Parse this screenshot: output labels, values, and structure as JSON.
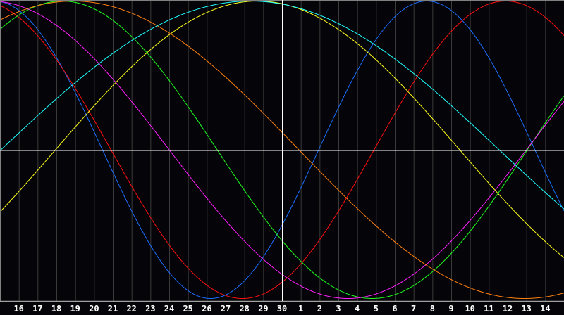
{
  "chart_data": {
    "type": "line",
    "title": "",
    "xlabel": "",
    "ylabel": "",
    "categories": [
      "16",
      "17",
      "18",
      "19",
      "20",
      "21",
      "22",
      "23",
      "24",
      "25",
      "26",
      "27",
      "28",
      "29",
      "30",
      "1",
      "2",
      "3",
      "4",
      "5",
      "6",
      "7",
      "8",
      "9",
      "10",
      "11",
      "12",
      "13",
      "14"
    ],
    "ylim": [
      -1,
      1
    ],
    "grid": true,
    "marker_category": "30",
    "series": [
      {
        "period_days": 23,
        "peak_index": 21.7,
        "color": "#1a6fff"
      },
      {
        "period_days": 28,
        "peak_index": 25.9,
        "color": "#ff1010"
      },
      {
        "period_days": 33,
        "peak_index": 2.3,
        "color": "#20ff20"
      },
      {
        "period_days": 38,
        "peak_index": -1.5,
        "color": "#ff20ff"
      },
      {
        "period_days": 43,
        "peak_index": 12.7,
        "color": "#ffff20"
      },
      {
        "period_days": 48,
        "peak_index": 2.9,
        "color": "#ff8010"
      },
      {
        "period_days": 53,
        "peak_index": 12.3,
        "color": "#20ffff"
      }
    ]
  },
  "colors": {
    "background": "#050408",
    "grid": "#3a3a3a",
    "axis": "#ffffff",
    "frame": "#808080"
  }
}
